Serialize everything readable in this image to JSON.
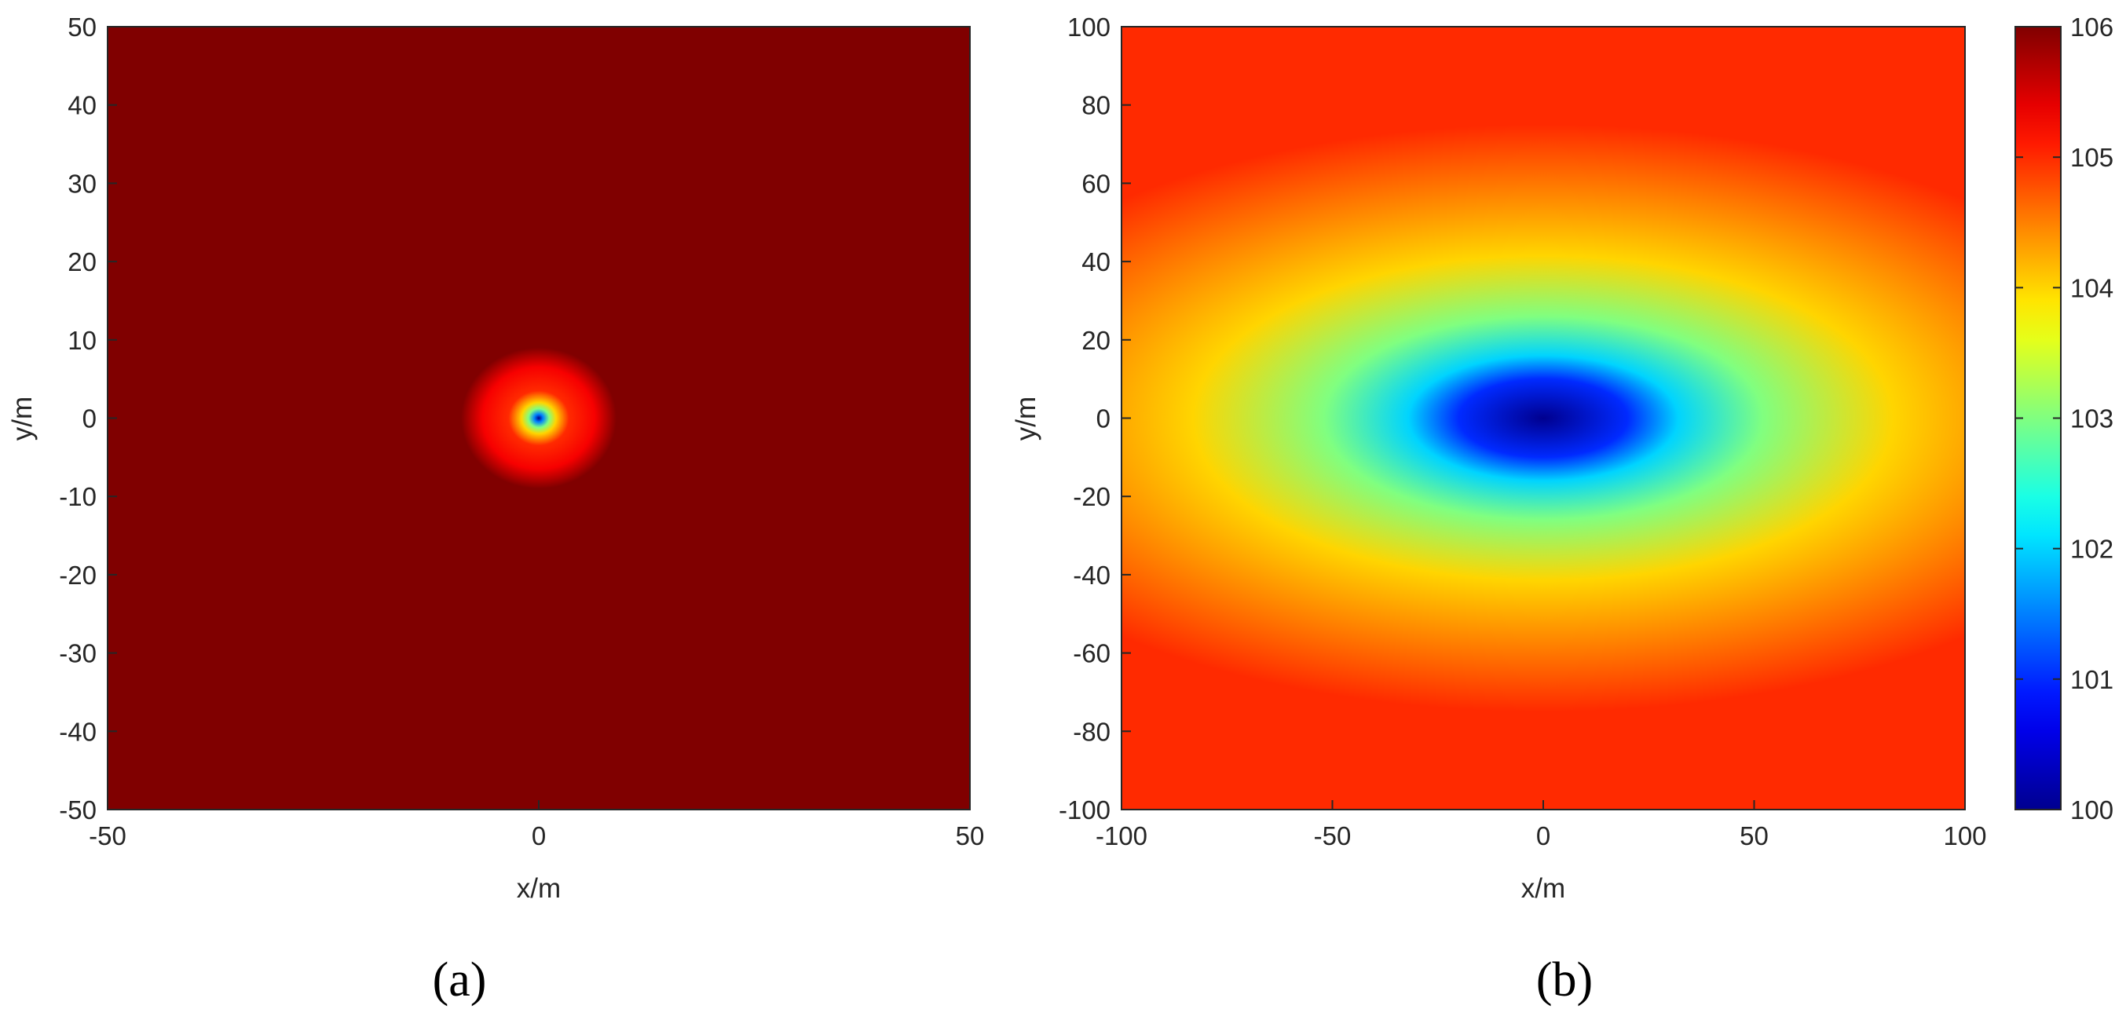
{
  "figure": {
    "panel_labels": [
      "(a)",
      "(b)"
    ]
  },
  "colormap": {
    "name": "jet",
    "stops": [
      "#00008f",
      "#0000ff",
      "#00ffff",
      "#ffff00",
      "#ff0000",
      "#800000"
    ]
  },
  "chart_data": [
    {
      "type": "heatmap",
      "panel": "(a)",
      "title": "",
      "xlabel": "x/m",
      "ylabel": "y/m",
      "xlim": [
        -50,
        50
      ],
      "ylim": [
        -50,
        50
      ],
      "xticks": [
        -50,
        0,
        50
      ],
      "yticks": [
        50,
        40,
        30,
        20,
        10,
        0,
        -10,
        -20,
        -30,
        -40,
        -50
      ],
      "color_range": [
        100,
        106
      ],
      "field": {
        "center": [
          0,
          0
        ],
        "min_value": 100,
        "background_value": 106,
        "radial_profile": [
          {
            "r": 0,
            "value": 100
          },
          {
            "r": 0.5,
            "value": 101.5
          },
          {
            "r": 1.2,
            "value": 103
          },
          {
            "r": 2.0,
            "value": 104
          },
          {
            "r": 3.5,
            "value": 105
          },
          {
            "r": 6.5,
            "value": 105.3
          },
          {
            "r": 9.0,
            "value": 106
          }
        ]
      },
      "grid": false
    },
    {
      "type": "heatmap",
      "panel": "(b)",
      "title": "",
      "xlabel": "x/m",
      "ylabel": "y/m",
      "xlim": [
        -100,
        100
      ],
      "ylim": [
        -100,
        100
      ],
      "xticks": [
        -100,
        -50,
        0,
        50,
        100
      ],
      "yticks": [
        100,
        80,
        60,
        40,
        20,
        0,
        -20,
        -40,
        -60,
        -80,
        -100
      ],
      "color_range": [
        100,
        106
      ],
      "field": {
        "center": [
          0,
          0
        ],
        "min_value": 100,
        "contours": [
          {
            "value": 100,
            "x_radius": 0,
            "y_radius": 0
          },
          {
            "value": 101,
            "x_radius": 20,
            "y_radius": 4
          },
          {
            "value": 102,
            "x_radius": 32,
            "y_radius": 8
          },
          {
            "value": 103,
            "x_radius": 52,
            "y_radius": 17
          },
          {
            "value": 104,
            "x_radius": 83,
            "y_radius": 27
          },
          {
            "value": 105,
            "x_radius": 150,
            "y_radius": 75
          }
        ]
      },
      "colorbar": {
        "ticks": [
          106,
          105,
          104,
          103,
          102,
          101,
          100
        ],
        "range": [
          100,
          106
        ],
        "placement": "right"
      },
      "grid": false
    }
  ]
}
